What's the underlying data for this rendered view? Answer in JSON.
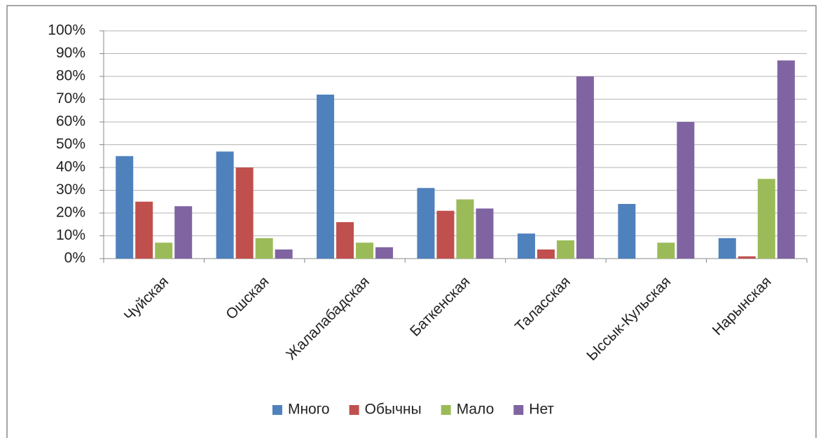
{
  "chart_data": {
    "type": "bar",
    "categories": [
      "Чуйская",
      "Ошская",
      "Жалалабадская",
      "Баткенская",
      "Таласская",
      "Ыссык-Кульская",
      "Нарынская"
    ],
    "series": [
      {
        "name": "Много",
        "color": "#4f81bd",
        "values": [
          45,
          47,
          72,
          31,
          11,
          24,
          9
        ]
      },
      {
        "name": "Обычны",
        "color": "#c0504d",
        "values": [
          25,
          40,
          16,
          21,
          4,
          0,
          1
        ]
      },
      {
        "name": "Мало",
        "color": "#9bbb59",
        "values": [
          7,
          9,
          7,
          26,
          8,
          7,
          35
        ]
      },
      {
        "name": "Нет",
        "color": "#8064a2",
        "values": [
          23,
          4,
          5,
          22,
          80,
          60,
          87
        ]
      }
    ],
    "ylim": [
      0,
      100
    ],
    "yticks": [
      {
        "value": 0,
        "label": "0%"
      },
      {
        "value": 10,
        "label": "10%"
      },
      {
        "value": 20,
        "label": "20%"
      },
      {
        "value": 30,
        "label": "30%"
      },
      {
        "value": 40,
        "label": "40%"
      },
      {
        "value": 50,
        "label": "50%"
      },
      {
        "value": 60,
        "label": "60%"
      },
      {
        "value": 70,
        "label": "70%"
      },
      {
        "value": 80,
        "label": "80%"
      },
      {
        "value": 90,
        "label": "90%"
      },
      {
        "value": 100,
        "label": "100%"
      }
    ],
    "grid": true,
    "legend": "bottom"
  }
}
